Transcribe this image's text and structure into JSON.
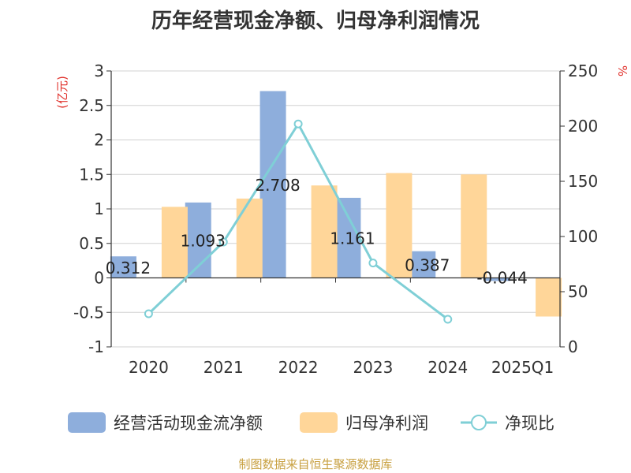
{
  "title": "历年经营现金净额、归母净利润情况",
  "source_note": "制图数据来自恒生聚源数据库",
  "chart_data": {
    "type": "bar",
    "categories": [
      "2020",
      "2021",
      "2022",
      "2023",
      "2024",
      "2025Q1"
    ],
    "series": [
      {
        "name": "经营活动现金流净额",
        "kind": "bar",
        "axis": "left",
        "color": "#8eaedc",
        "values": [
          0.312,
          1.093,
          2.708,
          1.161,
          0.387,
          -0.044
        ],
        "labels": [
          "0.312",
          "1.093",
          "2.708",
          "1.161",
          "0.387",
          "-0.044"
        ]
      },
      {
        "name": "归母净利润",
        "kind": "bar",
        "axis": "left",
        "color": "#ffd699",
        "values": [
          1.03,
          1.15,
          1.34,
          1.52,
          1.5,
          -0.56
        ]
      },
      {
        "name": "净现比",
        "kind": "line",
        "axis": "right",
        "color": "#7fcfd6",
        "values": [
          30,
          95,
          202,
          76,
          25,
          null
        ]
      }
    ],
    "y_left": {
      "unit": "(亿元)",
      "min": -1,
      "max": 3,
      "ticks": [
        3,
        2.5,
        2,
        1.5,
        1,
        0.5,
        0,
        -0.5,
        -1
      ],
      "tick_labels": [
        "3",
        "2.5",
        "2",
        "1.5",
        "1",
        "0.5",
        "0",
        "-0.5",
        "-1"
      ]
    },
    "y_right": {
      "unit": "%",
      "min": 0,
      "max": 250,
      "ticks": [
        250,
        200,
        150,
        100,
        50,
        0
      ],
      "tick_labels": [
        "250",
        "200",
        "150",
        "100",
        "50",
        "0"
      ]
    },
    "grid": true,
    "legend_position": "bottom",
    "unit_color": "#e0302a"
  }
}
